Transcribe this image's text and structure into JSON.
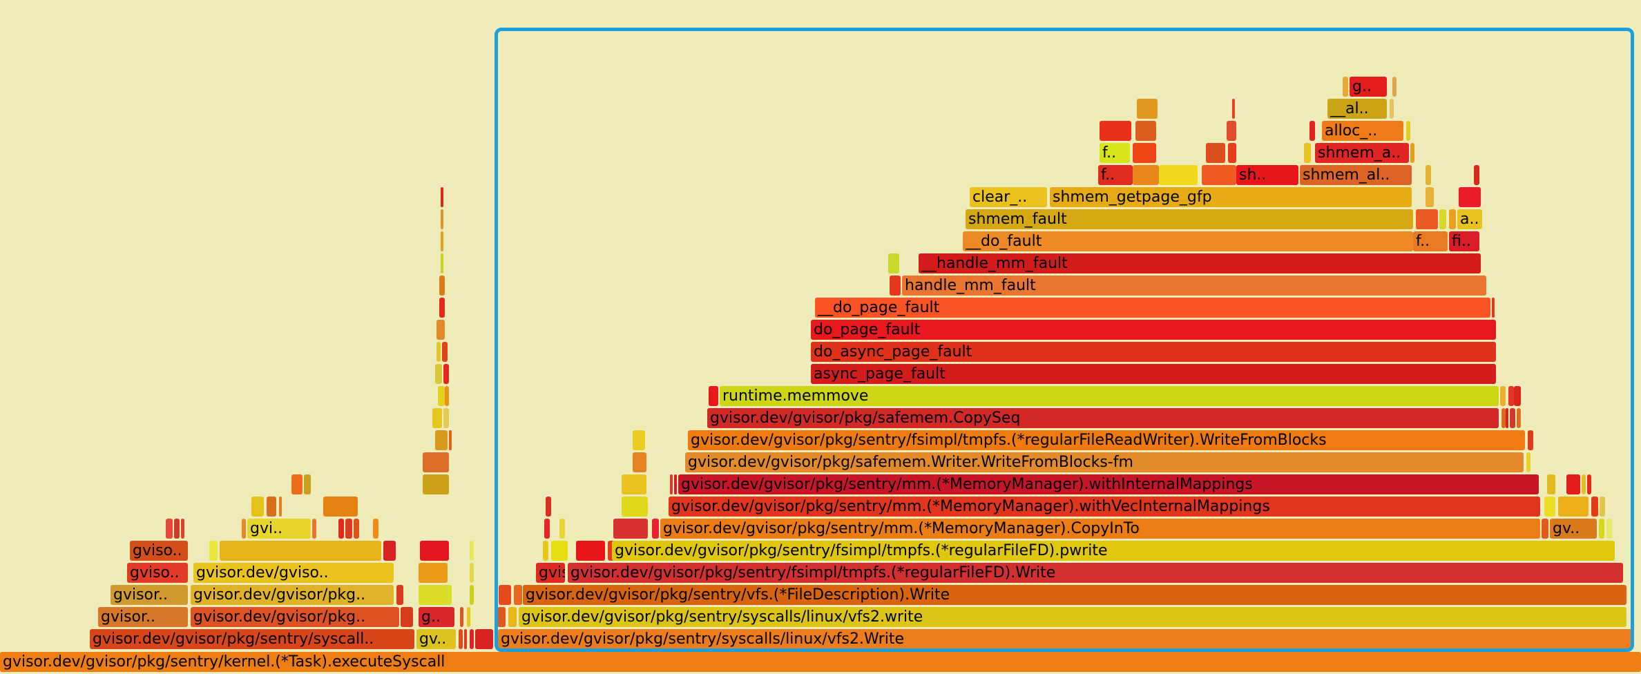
{
  "title": "Flame graph",
  "background": "#efecb9",
  "selection_color": "#1aa0dc",
  "frame_rows": [
    "gvisor.dev/gvisor/pkg/sentry/kernel.(*Task).executeSyscall",
    "gvisor.dev/gvisor/pkg/sentry/syscall..",
    "gv..",
    "gvisor.dev/gvisor/pkg/sentry/syscalls/linux/vfs2.Write",
    "gvisor..",
    "gvisor.dev/gvisor/pkg..",
    "gvisor.dev/gvisor/pkg/sentry/syscalls/linux/vfs2.write",
    "gvisor..",
    "g..",
    "gvisor.dev/gvisor/pkg/sentry/vfs.(*FileDescription).Write",
    "gviso..",
    "gvisor.dev/gvisor/pkg..",
    "gvisor.dev/gvisor/pkg/sentry/fsimpl/tmpfs.(*regularFileFD).Write",
    "gviso..",
    "gvisor.dev/gviso..",
    "gvisor.dev/gvisor/pkg/sentry/fsimpl/tmpfs.(*regularFileFD).pwrite",
    "gviso..",
    "gvi..",
    "gvisor.dev/gvisor/pkg/sentry/mm.(*MemoryManager).CopyInTo",
    "gv..",
    "gvisor.dev/gvisor/pkg/sentry/mm.(*MemoryManager).withVecInternalMappings",
    "gvisor.dev/gvisor/pkg/sentry/mm.(*MemoryManager).withInternalMappings",
    "gvisor.dev/gvisor/pkg/safemem.Writer.WriteFromBlocks-fm",
    "gvisor.dev/gvisor/pkg/sentry/fsimpl/tmpfs.(*regularFileReadWriter).WriteFromBlocks",
    "gvisor.dev/gvisor/pkg/safemem.CopySeq",
    "runtime.memmove",
    "async_page_fault",
    "do_async_page_fault",
    "do_page_fault",
    "__do_page_fault",
    "handle_mm_fault",
    "__handle_mm_fault",
    "__do_fault",
    "f..",
    "fi..",
    "shmem_fault",
    "a..",
    "clear_..",
    "shmem_getpage_gfp",
    "f..",
    "sh..",
    "shmem_al..",
    "shmem_a..",
    "alloc_..",
    "__al..",
    "g.."
  ]
}
